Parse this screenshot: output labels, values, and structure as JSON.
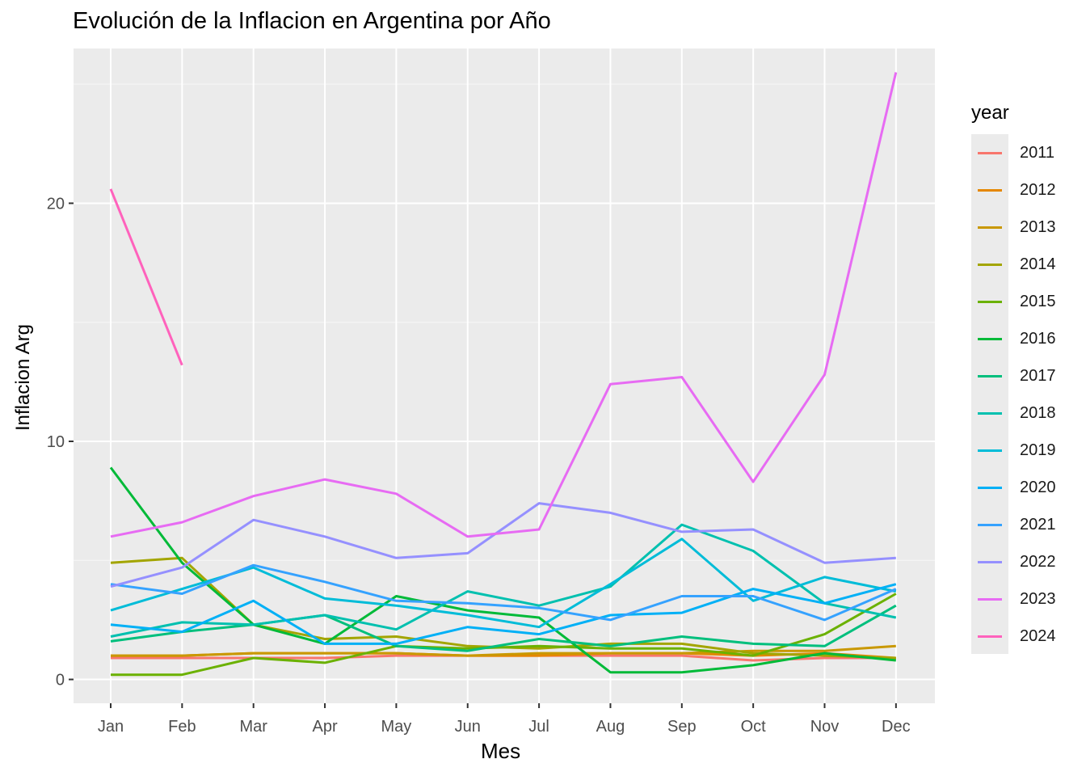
{
  "title": "Evolución de la Inflacion en Argentina por Año",
  "legend": {
    "title": "year"
  },
  "chart_data": {
    "type": "line",
    "title": "Evolución de la Inflacion en Argentina por Año",
    "xlabel": "Mes",
    "ylabel": "Inflacion Arg",
    "categories": [
      "Jan",
      "Feb",
      "Mar",
      "Apr",
      "May",
      "Jun",
      "Jul",
      "Aug",
      "Sep",
      "Oct",
      "Nov",
      "Dec"
    ],
    "ylim": [
      -1,
      26.5
    ],
    "yticks": [
      0,
      10,
      20
    ],
    "grid": true,
    "legend_position": "right",
    "series": [
      {
        "name": "2011",
        "color": "#F8766D",
        "values": [
          0.9,
          0.9,
          0.9,
          0.9,
          1.0,
          1.0,
          1.0,
          1.0,
          1.0,
          0.8,
          0.9,
          0.9
        ]
      },
      {
        "name": "2012",
        "color": "#E58700",
        "values": [
          1.0,
          1.0,
          1.1,
          1.1,
          1.1,
          1.0,
          1.0,
          1.1,
          1.1,
          1.0,
          1.1,
          0.9
        ]
      },
      {
        "name": "2013",
        "color": "#C99800",
        "values": [
          1.0,
          1.0,
          1.1,
          1.1,
          1.1,
          1.0,
          1.1,
          1.1,
          1.1,
          1.2,
          1.2,
          1.4
        ]
      },
      {
        "name": "2014",
        "color": "#A3A500",
        "values": [
          4.9,
          5.1,
          2.3,
          1.7,
          1.8,
          1.4,
          1.3,
          1.5,
          1.5,
          1.1,
          1.0,
          0.9
        ]
      },
      {
        "name": "2015",
        "color": "#6BB100",
        "values": [
          0.2,
          0.2,
          0.9,
          0.7,
          1.4,
          1.3,
          1.4,
          1.3,
          1.3,
          1.0,
          1.9,
          3.6
        ]
      },
      {
        "name": "2016",
        "color": "#00BA38",
        "values": [
          8.9,
          4.9,
          2.3,
          1.5,
          3.5,
          2.9,
          2.6,
          0.3,
          0.3,
          0.6,
          1.1,
          0.8
        ]
      },
      {
        "name": "2017",
        "color": "#00BF7D",
        "values": [
          1.6,
          2.0,
          2.3,
          2.7,
          1.4,
          1.2,
          1.7,
          1.4,
          1.8,
          1.5,
          1.4,
          3.1
        ]
      },
      {
        "name": "2018",
        "color": "#00C0AF",
        "values": [
          1.8,
          2.4,
          2.3,
          2.7,
          2.1,
          3.7,
          3.1,
          3.9,
          6.5,
          5.4,
          3.2,
          2.6
        ]
      },
      {
        "name": "2019",
        "color": "#00BCD8",
        "values": [
          2.9,
          3.8,
          4.7,
          3.4,
          3.1,
          2.7,
          2.2,
          4.0,
          5.9,
          3.3,
          4.3,
          3.7
        ]
      },
      {
        "name": "2020",
        "color": "#00B0F6",
        "values": [
          2.3,
          2.0,
          3.3,
          1.5,
          1.5,
          2.2,
          1.9,
          2.7,
          2.8,
          3.8,
          3.2,
          4.0
        ]
      },
      {
        "name": "2021",
        "color": "#35A2FF",
        "values": [
          4.0,
          3.6,
          4.8,
          4.1,
          3.3,
          3.2,
          3.0,
          2.5,
          3.5,
          3.5,
          2.5,
          3.8
        ]
      },
      {
        "name": "2022",
        "color": "#9590FF",
        "values": [
          3.9,
          4.7,
          6.7,
          6.0,
          5.1,
          5.3,
          7.4,
          7.0,
          6.2,
          6.3,
          4.9,
          5.1
        ]
      },
      {
        "name": "2023",
        "color": "#E76BF3",
        "values": [
          6.0,
          6.6,
          7.7,
          8.4,
          7.8,
          6.0,
          6.3,
          12.4,
          12.7,
          8.3,
          12.8,
          25.5
        ]
      },
      {
        "name": "2024",
        "color": "#FF62BC",
        "values": [
          20.6,
          13.2,
          null,
          null,
          null,
          null,
          null,
          null,
          null,
          null,
          null,
          null
        ]
      }
    ]
  }
}
